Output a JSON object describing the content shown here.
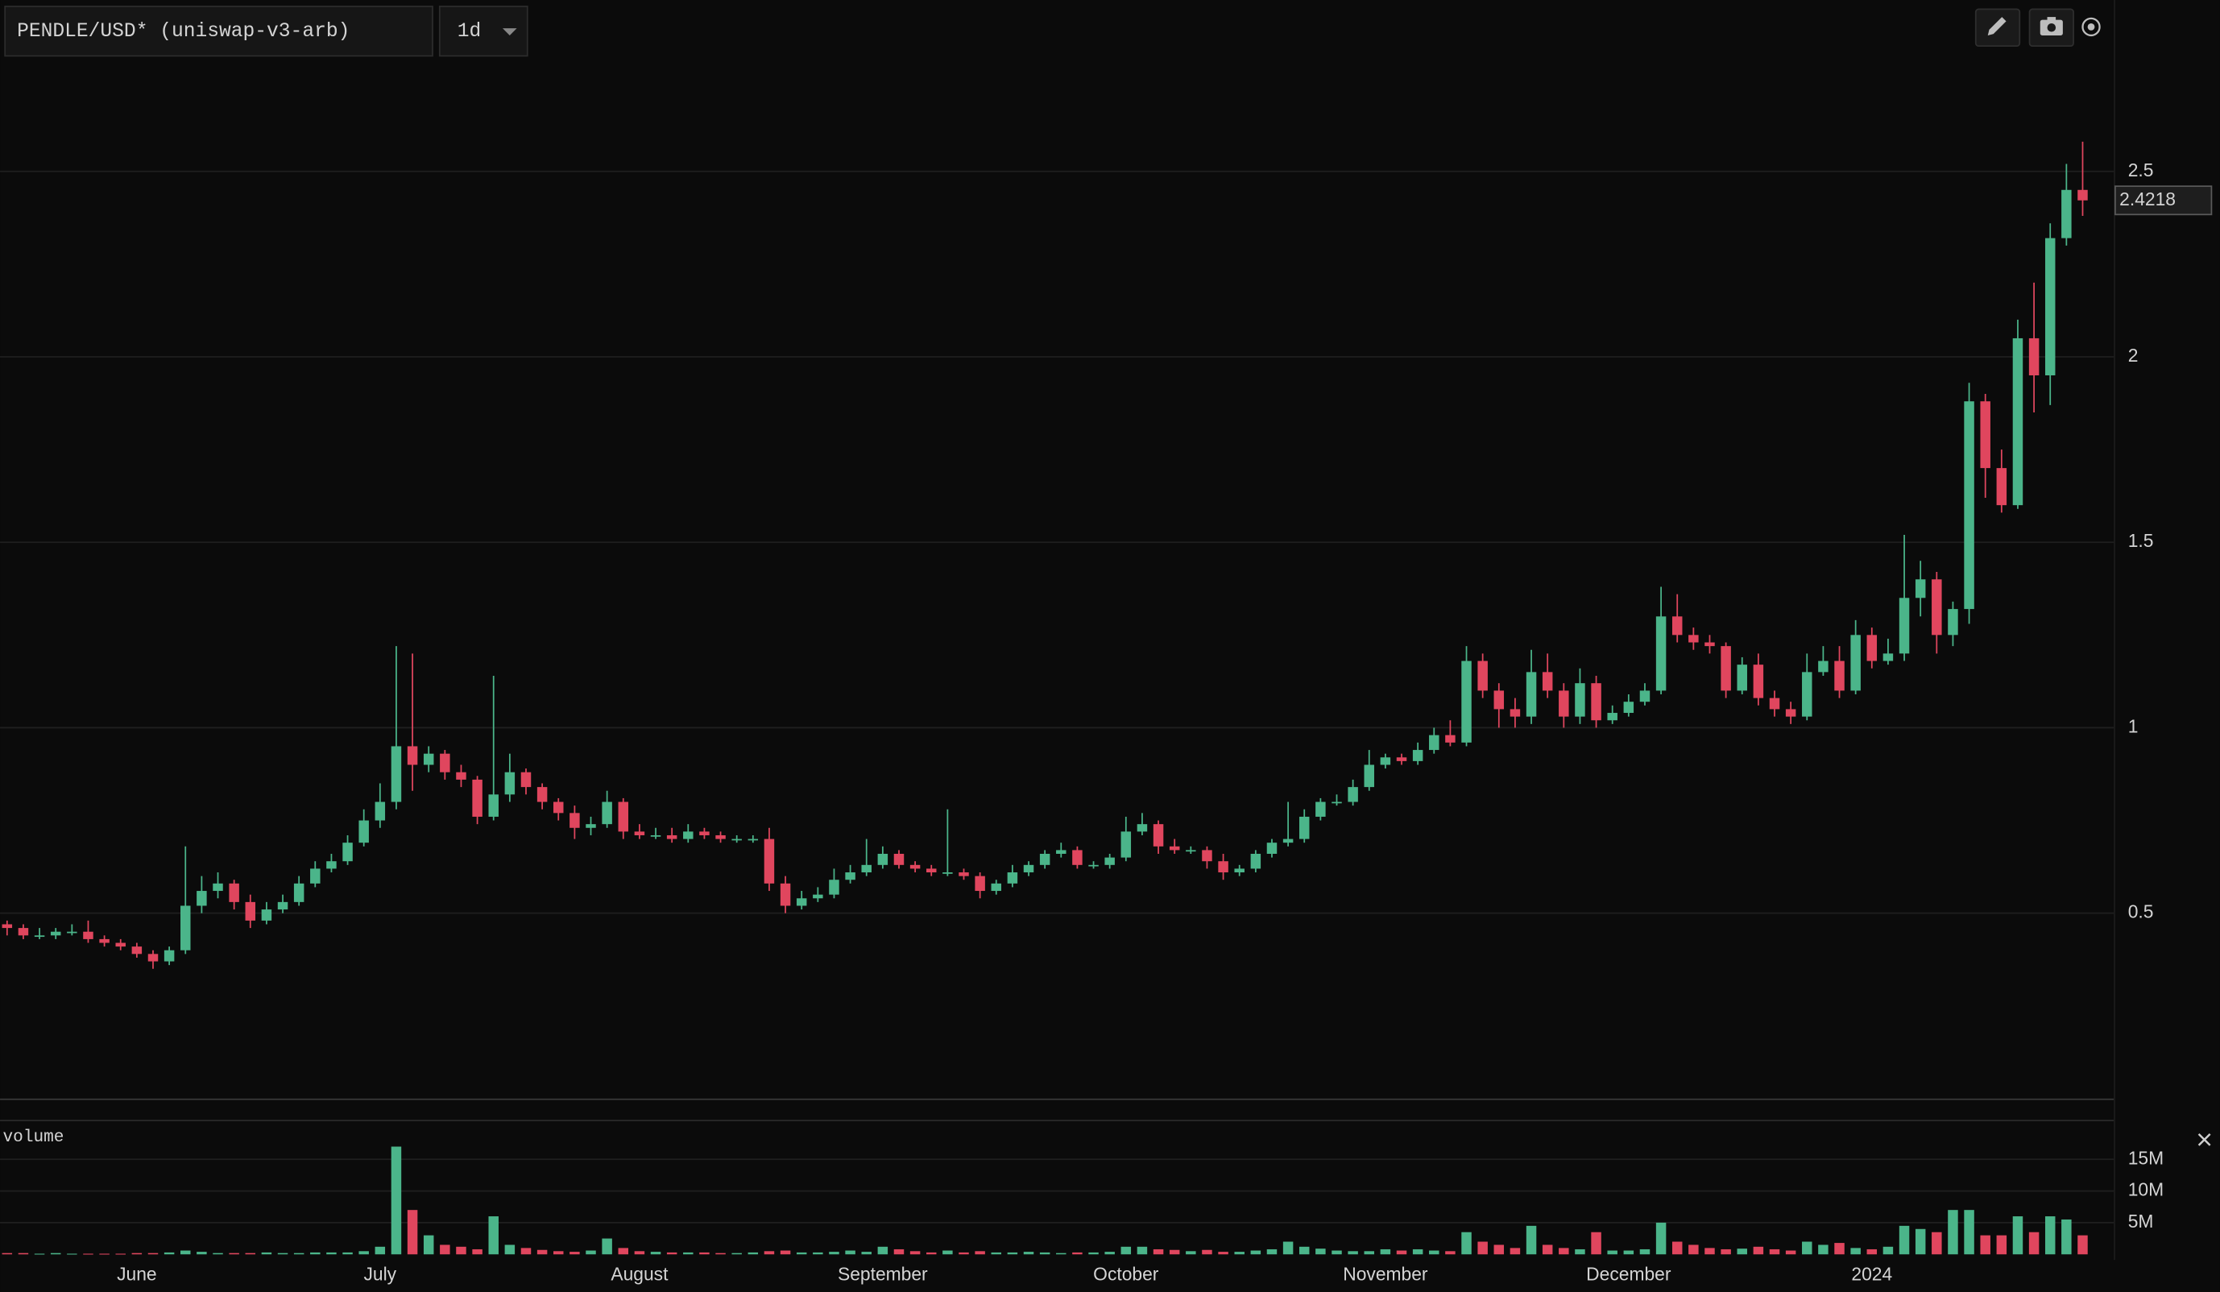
{
  "chart_data": [
    {
      "type": "candlestick",
      "title": "PENDLE/USD* (uniswap-v3-arb)",
      "interval": "1d",
      "up_color": "#4bb58a",
      "down_color": "#e0465e",
      "grid": true,
      "ylim": [
        0,
        2.962
      ],
      "yticks": [
        0.5,
        1,
        1.5,
        2,
        2.5
      ],
      "categories": [
        null,
        null,
        null,
        null,
        null,
        null,
        null,
        null,
        "June",
        null,
        null,
        null,
        null,
        null,
        null,
        null,
        null,
        null,
        null,
        null,
        null,
        null,
        null,
        "July",
        null,
        null,
        null,
        null,
        null,
        null,
        null,
        null,
        null,
        null,
        null,
        null,
        null,
        null,
        null,
        "August",
        null,
        null,
        null,
        null,
        null,
        null,
        null,
        null,
        null,
        null,
        null,
        null,
        null,
        null,
        "September",
        null,
        null,
        null,
        null,
        null,
        null,
        null,
        null,
        null,
        null,
        null,
        null,
        null,
        null,
        "October",
        null,
        null,
        null,
        null,
        null,
        null,
        null,
        null,
        null,
        null,
        null,
        null,
        null,
        null,
        null,
        "November",
        null,
        null,
        null,
        null,
        null,
        null,
        null,
        null,
        null,
        null,
        null,
        null,
        null,
        null,
        "December",
        null,
        null,
        null,
        null,
        null,
        null,
        null,
        null,
        null,
        null,
        null,
        null,
        null,
        null,
        "2024",
        null,
        null,
        null,
        null,
        null,
        null,
        null,
        null,
        null,
        null,
        null,
        null,
        null
      ],
      "open": [
        0.47,
        0.46,
        0.44,
        0.44,
        0.45,
        0.45,
        0.43,
        0.42,
        0.41,
        0.39,
        0.37,
        0.4,
        0.52,
        0.56,
        0.58,
        0.53,
        0.48,
        0.51,
        0.53,
        0.58,
        0.62,
        0.64,
        0.69,
        0.75,
        0.8,
        0.95,
        0.9,
        0.93,
        0.88,
        0.86,
        0.76,
        0.82,
        0.88,
        0.84,
        0.8,
        0.77,
        0.73,
        0.74,
        0.8,
        0.72,
        0.71,
        0.71,
        0.7,
        0.72,
        0.71,
        0.7,
        0.7,
        0.7,
        0.58,
        0.52,
        0.54,
        0.55,
        0.59,
        0.61,
        0.63,
        0.66,
        0.63,
        0.62,
        0.61,
        0.61,
        0.6,
        0.56,
        0.58,
        0.61,
        0.63,
        0.66,
        0.67,
        0.63,
        0.63,
        0.65,
        0.72,
        0.74,
        0.68,
        0.67,
        0.67,
        0.64,
        0.61,
        0.62,
        0.66,
        0.69,
        0.7,
        0.76,
        0.8,
        0.8,
        0.84,
        0.9,
        0.92,
        0.91,
        0.94,
        0.98,
        0.96,
        1.18,
        1.1,
        1.05,
        1.03,
        1.15,
        1.1,
        1.03,
        1.12,
        1.02,
        1.04,
        1.07,
        1.1,
        1.3,
        1.25,
        1.23,
        1.22,
        1.1,
        1.17,
        1.08,
        1.05,
        1.03,
        1.15,
        1.18,
        1.1,
        1.25,
        1.18,
        1.2,
        1.35,
        1.4,
        1.25,
        1.32,
        1.88,
        1.7,
        1.6,
        2.05,
        1.95,
        2.32,
        2.45
      ],
      "high": [
        0.48,
        0.47,
        0.46,
        0.46,
        0.47,
        0.48,
        0.44,
        0.43,
        0.42,
        0.4,
        0.41,
        0.68,
        0.6,
        0.61,
        0.59,
        0.55,
        0.53,
        0.55,
        0.6,
        0.64,
        0.66,
        0.71,
        0.78,
        0.85,
        1.22,
        1.2,
        0.95,
        0.94,
        0.9,
        0.87,
        1.14,
        0.93,
        0.89,
        0.85,
        0.81,
        0.79,
        0.76,
        0.83,
        0.81,
        0.74,
        0.73,
        0.73,
        0.74,
        0.73,
        0.72,
        0.71,
        0.71,
        0.73,
        0.6,
        0.56,
        0.57,
        0.62,
        0.63,
        0.7,
        0.68,
        0.67,
        0.64,
        0.63,
        0.78,
        0.62,
        0.61,
        0.59,
        0.63,
        0.64,
        0.67,
        0.69,
        0.68,
        0.64,
        0.66,
        0.76,
        0.77,
        0.75,
        0.7,
        0.68,
        0.68,
        0.66,
        0.63,
        0.67,
        0.7,
        0.8,
        0.78,
        0.81,
        0.82,
        0.86,
        0.94,
        0.93,
        0.93,
        0.96,
        1.0,
        1.02,
        1.22,
        1.2,
        1.12,
        1.08,
        1.21,
        1.2,
        1.12,
        1.16,
        1.14,
        1.06,
        1.09,
        1.12,
        1.38,
        1.36,
        1.27,
        1.25,
        1.23,
        1.19,
        1.2,
        1.1,
        1.07,
        1.2,
        1.22,
        1.22,
        1.29,
        1.27,
        1.24,
        1.52,
        1.45,
        1.42,
        1.34,
        1.93,
        1.9,
        1.75,
        2.1,
        2.2,
        2.36,
        2.52,
        2.58
      ],
      "low": [
        0.44,
        0.43,
        0.43,
        0.43,
        0.44,
        0.42,
        0.41,
        0.4,
        0.38,
        0.35,
        0.36,
        0.39,
        0.5,
        0.54,
        0.51,
        0.46,
        0.47,
        0.5,
        0.52,
        0.57,
        0.61,
        0.63,
        0.68,
        0.73,
        0.78,
        0.83,
        0.88,
        0.86,
        0.84,
        0.74,
        0.75,
        0.8,
        0.82,
        0.78,
        0.75,
        0.7,
        0.71,
        0.73,
        0.7,
        0.7,
        0.7,
        0.69,
        0.69,
        0.7,
        0.69,
        0.69,
        0.69,
        0.56,
        0.5,
        0.51,
        0.53,
        0.54,
        0.58,
        0.6,
        0.62,
        0.62,
        0.61,
        0.6,
        0.6,
        0.59,
        0.54,
        0.55,
        0.57,
        0.6,
        0.62,
        0.65,
        0.62,
        0.62,
        0.62,
        0.64,
        0.71,
        0.66,
        0.66,
        0.66,
        0.62,
        0.59,
        0.6,
        0.61,
        0.65,
        0.68,
        0.69,
        0.75,
        0.79,
        0.79,
        0.83,
        0.89,
        0.9,
        0.9,
        0.93,
        0.95,
        0.95,
        1.08,
        1.0,
        1.0,
        1.01,
        1.08,
        1.0,
        1.01,
        1.0,
        1.01,
        1.03,
        1.06,
        1.09,
        1.23,
        1.21,
        1.2,
        1.08,
        1.09,
        1.06,
        1.03,
        1.01,
        1.02,
        1.14,
        1.08,
        1.09,
        1.16,
        1.17,
        1.18,
        1.3,
        1.2,
        1.22,
        1.28,
        1.62,
        1.58,
        1.59,
        1.85,
        1.87,
        2.3,
        2.38
      ],
      "close": [
        0.46,
        0.44,
        0.44,
        0.45,
        0.45,
        0.43,
        0.42,
        0.41,
        0.39,
        0.37,
        0.4,
        0.52,
        0.56,
        0.58,
        0.53,
        0.48,
        0.51,
        0.53,
        0.58,
        0.62,
        0.64,
        0.69,
        0.75,
        0.8,
        0.95,
        0.9,
        0.93,
        0.88,
        0.86,
        0.76,
        0.82,
        0.88,
        0.84,
        0.8,
        0.77,
        0.73,
        0.74,
        0.8,
        0.72,
        0.71,
        0.71,
        0.7,
        0.72,
        0.71,
        0.7,
        0.7,
        0.7,
        0.58,
        0.52,
        0.54,
        0.55,
        0.59,
        0.61,
        0.63,
        0.66,
        0.63,
        0.62,
        0.61,
        0.61,
        0.6,
        0.56,
        0.58,
        0.61,
        0.63,
        0.66,
        0.67,
        0.63,
        0.63,
        0.65,
        0.72,
        0.74,
        0.68,
        0.67,
        0.67,
        0.64,
        0.61,
        0.62,
        0.66,
        0.69,
        0.7,
        0.76,
        0.8,
        0.8,
        0.84,
        0.9,
        0.92,
        0.91,
        0.94,
        0.98,
        0.96,
        1.18,
        1.1,
        1.05,
        1.03,
        1.15,
        1.1,
        1.03,
        1.12,
        1.02,
        1.04,
        1.07,
        1.1,
        1.3,
        1.25,
        1.23,
        1.22,
        1.1,
        1.17,
        1.08,
        1.05,
        1.03,
        1.15,
        1.18,
        1.1,
        1.25,
        1.18,
        1.2,
        1.35,
        1.4,
        1.25,
        1.32,
        1.88,
        1.7,
        1.6,
        2.05,
        1.95,
        2.32,
        2.45,
        2.4218
      ]
    },
    {
      "type": "bar",
      "title": "volume",
      "grid": true,
      "ylim": [
        0,
        21000000
      ],
      "yticks": [
        {
          "value": 5000000,
          "label": "5M"
        },
        {
          "value": 10000000,
          "label": "10M"
        },
        {
          "value": 15000000,
          "label": "15M"
        }
      ],
      "values": [
        200000,
        200000,
        100000,
        200000,
        100000,
        100000,
        100000,
        100000,
        200000,
        200000,
        300000,
        600000,
        400000,
        200000,
        200000,
        200000,
        300000,
        200000,
        200000,
        300000,
        300000,
        300000,
        500000,
        1200000,
        17000000,
        7000000,
        3000000,
        1500000,
        1200000,
        800000,
        6000000,
        1500000,
        1000000,
        700000,
        500000,
        400000,
        600000,
        2500000,
        1000000,
        500000,
        400000,
        300000,
        300000,
        300000,
        200000,
        200000,
        300000,
        500000,
        600000,
        300000,
        300000,
        400000,
        600000,
        400000,
        1200000,
        800000,
        500000,
        300000,
        600000,
        300000,
        500000,
        300000,
        300000,
        400000,
        300000,
        200000,
        300000,
        300000,
        400000,
        1200000,
        1200000,
        800000,
        700000,
        500000,
        700000,
        400000,
        400000,
        600000,
        800000,
        2000000,
        1200000,
        900000,
        600000,
        500000,
        500000,
        800000,
        600000,
        800000,
        600000,
        500000,
        3500000,
        2000000,
        1500000,
        1000000,
        4500000,
        1500000,
        1000000,
        800000,
        3500000,
        600000,
        600000,
        800000,
        5000000,
        2000000,
        1500000,
        1000000,
        800000,
        900000,
        1200000,
        800000,
        600000,
        2000000,
        1500000,
        1800000,
        1000000,
        800000,
        1200000,
        4500000,
        4000000,
        3500000,
        7000000,
        7000000,
        3000000,
        3000000,
        6000000,
        3500000,
        6000000,
        5500000,
        3000000
      ]
    }
  ]
}
